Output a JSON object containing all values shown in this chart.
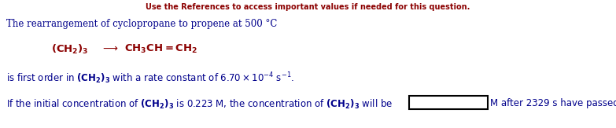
{
  "bg_color": "#ffffff",
  "top_text": "Use the References to access important values if needed for this question.",
  "top_text_color": "#8B0000",
  "line1": "The rearrangement of cyclopropane to propene at 500 °C",
  "line1_color": "#00008B",
  "line2_color": "#8B0000",
  "line3_color": "#00008B",
  "line4_color": "#00008B",
  "line3_text": "is first order in $\\mathbf{(CH_2)_3}$ with a rate constant of $6.70\\times10^{-4}$ s$^{-1}$.",
  "line4_part1": "If the initial concentration of $\\mathbf{(CH_2)_3}$ is 0.223 M, the concentration of $\\mathbf{(CH_2)_3}$ will be ",
  "line4_part2": "M after 2329 s have passed.",
  "fontsize_main": 8.5,
  "fontsize_eq": 9.5,
  "box_color": "#000000",
  "box_facecolor": "#ffffff"
}
